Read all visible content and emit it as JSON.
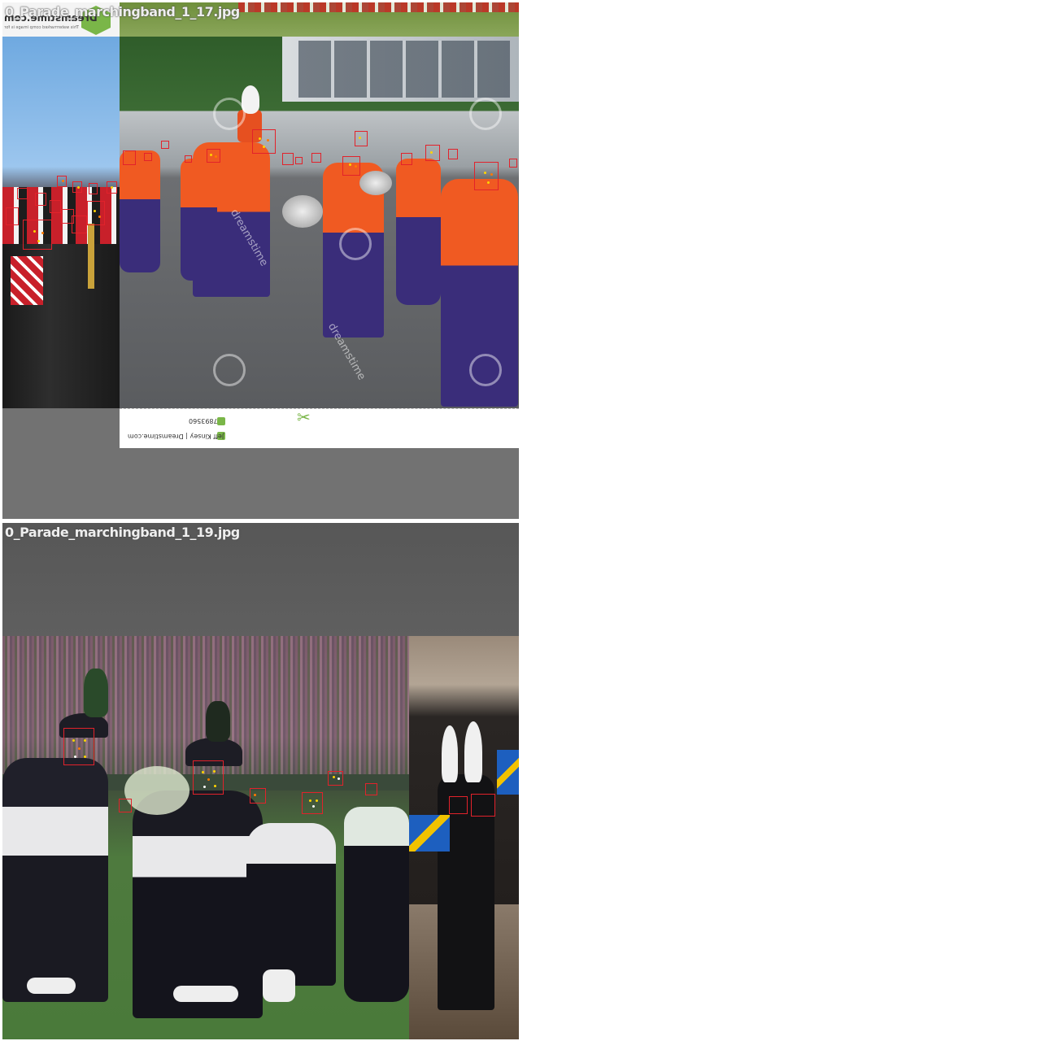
{
  "tiles": [
    {
      "label": "0_Parade_marchingband_1_17.jpg",
      "watermark": {
        "site": "Dreamstime.com",
        "notice": "This watermarked comp image is for previewing purposes only.",
        "id_line": "7893560",
        "credit": "Jeff Kinsey | Dreamstime.com",
        "stamp_word": "dreamstime"
      }
    },
    {
      "label": "0_Parade_marchingband_1_19.jpg"
    }
  ],
  "colors": {
    "bbox": "#e2222b",
    "keypoint_a": "#ffd400",
    "keypoint_b": "#ff7a00",
    "keypoint_c": "#ffffff",
    "letterbox_top": "#5a5a5a",
    "letterbox_bottom": "#727272",
    "uniform_orange": "#f05a22",
    "uniform_navy": "#3a2d7a",
    "field_green": "#4a7a3a"
  }
}
